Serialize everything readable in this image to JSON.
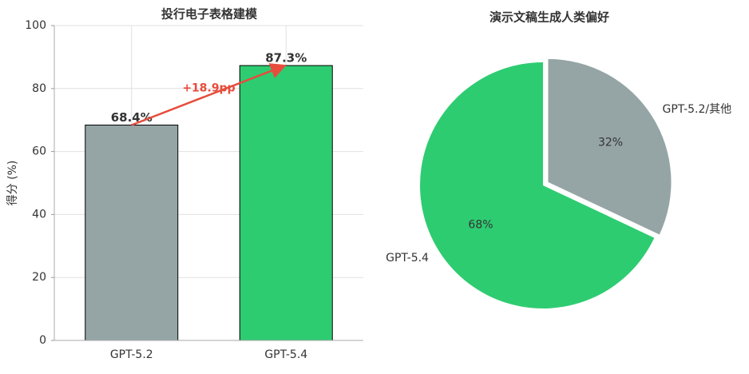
{
  "chart_data": [
    {
      "type": "bar",
      "title": "投行电子表格建模",
      "ylabel": "得分 (%)",
      "categories": [
        "GPT-5.2",
        "GPT-5.4"
      ],
      "values": [
        68.4,
        87.3
      ],
      "value_labels": [
        "68.4%",
        "87.3%"
      ],
      "colors": [
        "#95a5a6",
        "#2ecc71"
      ],
      "ylim": [
        0,
        100
      ],
      "yticks": [
        0,
        20,
        40,
        60,
        80,
        100
      ],
      "grid": true,
      "annotation": "+18.9pp"
    },
    {
      "type": "pie",
      "title": "演示文稿生成人类偏好",
      "labels": [
        "GPT-5.4",
        "GPT-5.2/其他"
      ],
      "values": [
        68,
        32
      ],
      "value_labels": [
        "68%",
        "32%"
      ],
      "colors": [
        "#2ecc71",
        "#95a5a6"
      ],
      "explode": [
        0,
        0.05
      ]
    }
  ]
}
